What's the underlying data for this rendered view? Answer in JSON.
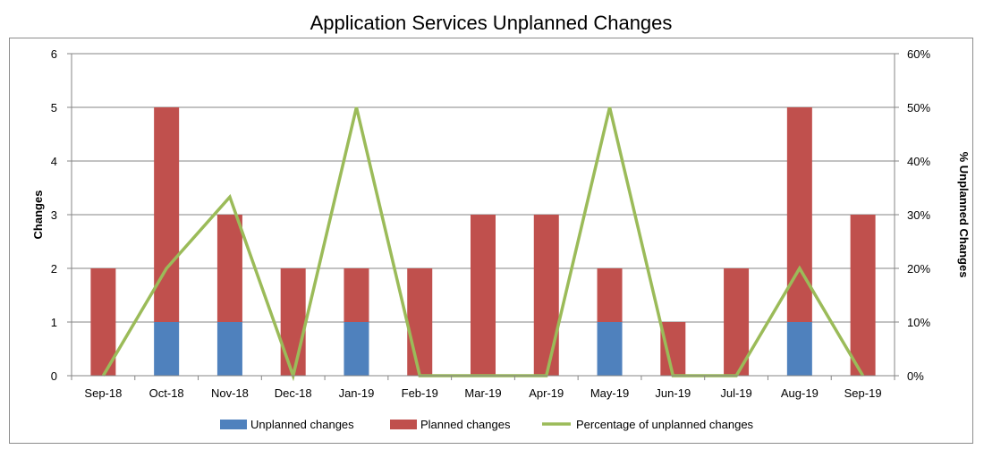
{
  "chart_data": {
    "type": "bar",
    "title": "Application Services Unplanned Changes",
    "xlabel": "",
    "ylabel": "Changes",
    "y2label": "% Unplanned Changes",
    "categories": [
      "Sep-18",
      "Oct-18",
      "Nov-18",
      "Dec-18",
      "Jan-19",
      "Feb-19",
      "Mar-19",
      "Apr-19",
      "May-19",
      "Jun-19",
      "Jul-19",
      "Aug-19",
      "Sep-19"
    ],
    "ylim": [
      0,
      6
    ],
    "yticks": [
      "0",
      "1",
      "2",
      "3",
      "4",
      "5",
      "6"
    ],
    "y2lim": [
      0,
      60
    ],
    "y2ticks": [
      "0%",
      "10%",
      "20%",
      "30%",
      "40%",
      "50%",
      "60%"
    ],
    "stacked": true,
    "grid": true,
    "legend_position": "bottom",
    "series": [
      {
        "name": "Unplanned changes",
        "type": "bar",
        "axis": "left",
        "color": "#4f81bd",
        "values": [
          0,
          1,
          1,
          0,
          1,
          0,
          0,
          0,
          1,
          0,
          0,
          1,
          0
        ]
      },
      {
        "name": "Planned changes",
        "type": "bar",
        "axis": "left",
        "color": "#c0504d",
        "values": [
          2,
          4,
          2,
          2,
          1,
          2,
          3,
          3,
          1,
          1,
          2,
          4,
          3
        ]
      },
      {
        "name": "Percentage of unplanned changes",
        "type": "line",
        "axis": "right",
        "color": "#9bbb59",
        "values": [
          0,
          20,
          33.3,
          0,
          50,
          0,
          0,
          0,
          50,
          0,
          0,
          20,
          0
        ]
      }
    ]
  }
}
